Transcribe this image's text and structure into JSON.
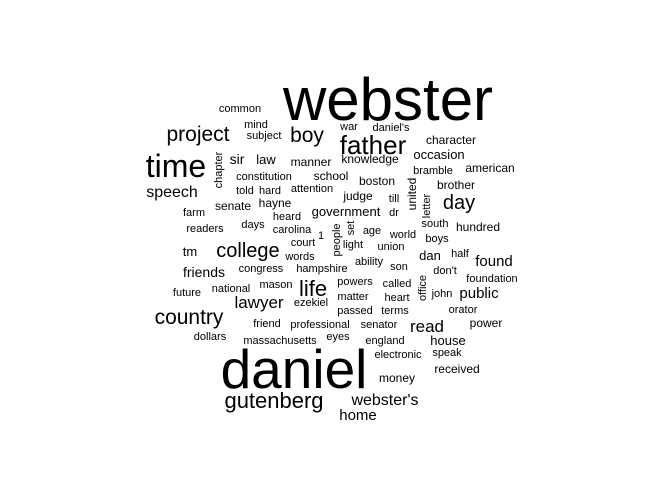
{
  "chart_data": {
    "type": "wordcloud",
    "color": "#000000",
    "background": "#ffffff",
    "words": [
      {
        "text": "webster",
        "weight": 100
      },
      {
        "text": "daniel",
        "weight": 92
      },
      {
        "text": "time",
        "weight": 52
      },
      {
        "text": "father",
        "weight": 44
      },
      {
        "text": "gutenberg",
        "weight": 40
      },
      {
        "text": "life",
        "weight": 38
      },
      {
        "text": "project",
        "weight": 37
      },
      {
        "text": "boy",
        "weight": 37
      },
      {
        "text": "country",
        "weight": 37
      },
      {
        "text": "college",
        "weight": 36
      },
      {
        "text": "day",
        "weight": 36
      },
      {
        "text": "lawyer",
        "weight": 32
      },
      {
        "text": "read",
        "weight": 32
      },
      {
        "text": "speech",
        "weight": 30
      },
      {
        "text": "webster's",
        "weight": 30
      },
      {
        "text": "home",
        "weight": 29
      },
      {
        "text": "found",
        "weight": 28
      },
      {
        "text": "public",
        "weight": 28
      },
      {
        "text": "friends",
        "weight": 26
      },
      {
        "text": "sir",
        "weight": 26
      },
      {
        "text": "dan",
        "weight": 25
      },
      {
        "text": "occasion",
        "weight": 24
      },
      {
        "text": "house",
        "weight": 24
      },
      {
        "text": "law",
        "weight": 24
      },
      {
        "text": "tm",
        "weight": 24
      },
      {
        "text": "government",
        "weight": 23
      },
      {
        "text": "manner",
        "weight": 23
      },
      {
        "text": "judge",
        "weight": 23
      },
      {
        "text": "senate",
        "weight": 22
      },
      {
        "text": "school",
        "weight": 22
      },
      {
        "text": "boston",
        "weight": 22
      },
      {
        "text": "power",
        "weight": 22
      },
      {
        "text": "money",
        "weight": 22
      },
      {
        "text": "received",
        "weight": 22
      },
      {
        "text": "character",
        "weight": 21
      },
      {
        "text": "hundred",
        "weight": 21
      },
      {
        "text": "knowledge",
        "weight": 21
      },
      {
        "text": "brother",
        "weight": 21
      },
      {
        "text": "american",
        "weight": 21
      },
      {
        "text": "hayne",
        "weight": 21
      },
      {
        "text": "united",
        "weight": 20
      },
      {
        "text": "common",
        "weight": 20
      },
      {
        "text": "mind",
        "weight": 20
      },
      {
        "text": "subject",
        "weight": 20
      },
      {
        "text": "war",
        "weight": 20
      },
      {
        "text": "daniel's",
        "weight": 20
      },
      {
        "text": "chapter",
        "weight": 20
      },
      {
        "text": "constitution",
        "weight": 19
      },
      {
        "text": "told",
        "weight": 19
      },
      {
        "text": "hard",
        "weight": 19
      },
      {
        "text": "attention",
        "weight": 19
      },
      {
        "text": "till",
        "weight": 19
      },
      {
        "text": "bramble",
        "weight": 19
      },
      {
        "text": "farm",
        "weight": 19
      },
      {
        "text": "heard",
        "weight": 19
      },
      {
        "text": "readers",
        "weight": 19
      },
      {
        "text": "days",
        "weight": 19
      },
      {
        "text": "carolina",
        "weight": 19
      },
      {
        "text": "people",
        "weight": 19
      },
      {
        "text": "court",
        "weight": 19
      },
      {
        "text": "age",
        "weight": 19
      },
      {
        "text": "world",
        "weight": 19
      },
      {
        "text": "south",
        "weight": 19
      },
      {
        "text": "boys",
        "weight": 19
      },
      {
        "text": "words",
        "weight": 19
      },
      {
        "text": "set",
        "weight": 19
      },
      {
        "text": "light",
        "weight": 19
      },
      {
        "text": "union",
        "weight": 19
      },
      {
        "text": "half",
        "weight": 19
      },
      {
        "text": "congress",
        "weight": 19
      },
      {
        "text": "hampshire",
        "weight": 19
      },
      {
        "text": "ability",
        "weight": 19
      },
      {
        "text": "son",
        "weight": 19
      },
      {
        "text": "office",
        "weight": 19
      },
      {
        "text": "don't",
        "weight": 19
      },
      {
        "text": "foundation",
        "weight": 19
      },
      {
        "text": "national",
        "weight": 19
      },
      {
        "text": "mason",
        "weight": 19
      },
      {
        "text": "powers",
        "weight": 19
      },
      {
        "text": "called",
        "weight": 19
      },
      {
        "text": "john",
        "weight": 19
      },
      {
        "text": "future",
        "weight": 19
      },
      {
        "text": "ezekiel",
        "weight": 19
      },
      {
        "text": "matter",
        "weight": 19
      },
      {
        "text": "heart",
        "weight": 19
      },
      {
        "text": "passed",
        "weight": 19
      },
      {
        "text": "terms",
        "weight": 19
      },
      {
        "text": "orator",
        "weight": 19
      },
      {
        "text": "dollars",
        "weight": 19
      },
      {
        "text": "friend",
        "weight": 19
      },
      {
        "text": "professional",
        "weight": 19
      },
      {
        "text": "senator",
        "weight": 19
      },
      {
        "text": "massachusetts",
        "weight": 19
      },
      {
        "text": "eyes",
        "weight": 19
      },
      {
        "text": "england",
        "weight": 19
      },
      {
        "text": "electronic",
        "weight": 19
      },
      {
        "text": "speak",
        "weight": 19
      },
      {
        "text": "letter",
        "weight": 19
      },
      {
        "text": "dr",
        "weight": 18
      },
      {
        "text": "1",
        "weight": 18
      }
    ]
  }
}
